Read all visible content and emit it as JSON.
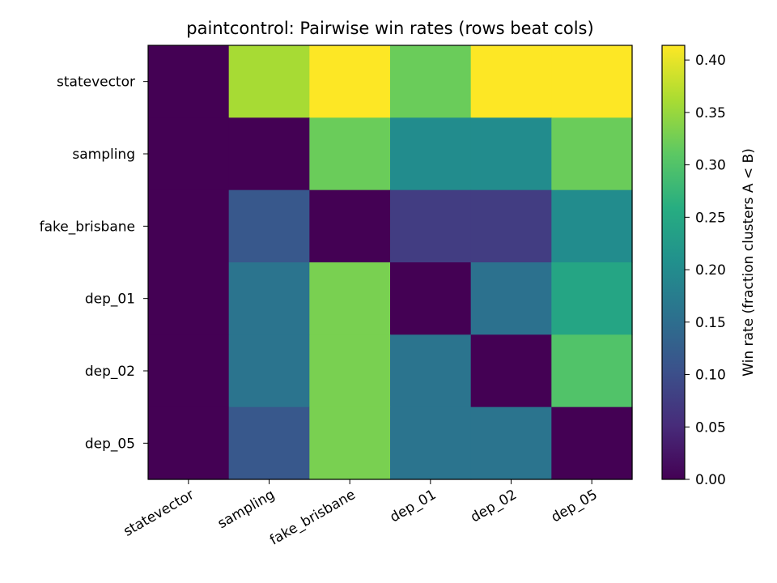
{
  "chart_data": {
    "type": "heatmap",
    "title": "paintcontrol: Pairwise win rates (rows beat cols)",
    "rows": [
      "statevector",
      "sampling",
      "fake_brisbane",
      "dep_01",
      "dep_02",
      "dep_05"
    ],
    "cols": [
      "statevector",
      "sampling",
      "fake_brisbane",
      "dep_01",
      "dep_02",
      "dep_05"
    ],
    "values": [
      [
        0.0,
        0.36,
        0.414,
        0.32,
        0.414,
        0.414
      ],
      [
        0.0,
        0.0,
        0.32,
        0.2,
        0.2,
        0.32
      ],
      [
        0.0,
        0.115,
        0.0,
        0.075,
        0.075,
        0.2
      ],
      [
        0.0,
        0.16,
        0.33,
        0.0,
        0.155,
        0.245
      ],
      [
        0.0,
        0.16,
        0.33,
        0.16,
        0.0,
        0.3
      ],
      [
        0.0,
        0.115,
        0.33,
        0.16,
        0.16,
        0.0
      ]
    ],
    "colormap": "viridis",
    "vmin": 0.0,
    "vmax": 0.414,
    "colorbar": {
      "label": "Win rate (fraction clusters A < B)",
      "ticks": [
        "0.00",
        "0.05",
        "0.10",
        "0.15",
        "0.20",
        "0.25",
        "0.30",
        "0.35",
        "0.40"
      ]
    }
  }
}
